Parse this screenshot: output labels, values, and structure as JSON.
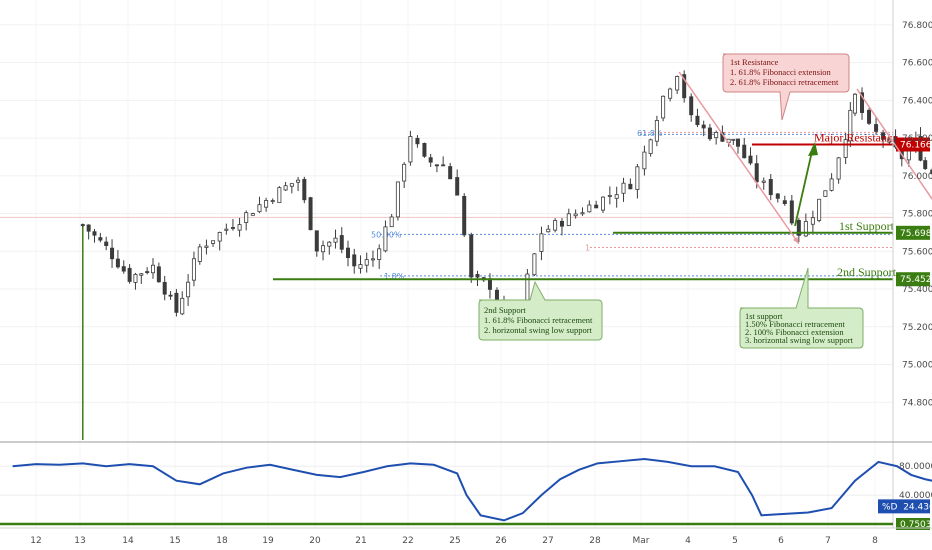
{
  "chart_data": [
    {
      "type": "candlestick",
      "title": "",
      "y_axis": {
        "ticks": [
          "76.800",
          "76.600",
          "76.400",
          "76.200",
          "76.000",
          "75.800",
          "75.600",
          "75.400",
          "75.200",
          "75.000",
          "74.800"
        ],
        "range": [
          74.6,
          76.9
        ]
      },
      "x_axis": {
        "ticks": [
          "12",
          "13",
          "14",
          "15",
          "18",
          "19",
          "20",
          "21",
          "22",
          "25",
          "26",
          "27",
          "28",
          "Mar",
          "4",
          "5",
          "6",
          "7",
          "8"
        ]
      },
      "series": [
        {
          "close_path": [
            [
              13.0,
              75.74
            ],
            [
              13.5,
              75.62
            ],
            [
              14.0,
              75.46
            ],
            [
              14.5,
              75.52
            ],
            [
              15.0,
              75.28
            ],
            [
              15.5,
              75.62
            ],
            [
              17.2,
              75.92
            ],
            [
              17.6,
              75.98
            ],
            [
              18.0,
              75.62
            ],
            [
              18.4,
              75.66
            ],
            [
              18.8,
              75.52
            ],
            [
              19.2,
              75.56
            ],
            [
              19.6,
              75.8
            ],
            [
              20.0,
              76.22
            ],
            [
              20.3,
              76.08
            ],
            [
              20.7,
              76.06
            ],
            [
              21.0,
              75.92
            ],
            [
              21.3,
              75.45
            ],
            [
              21.7,
              75.42
            ],
            [
              22.0,
              75.25
            ],
            [
              22.2,
              75.12
            ],
            [
              22.5,
              75.46
            ],
            [
              22.8,
              75.7
            ],
            [
              24.7,
              75.96
            ],
            [
              25.0,
              76.12
            ],
            [
              25.4,
              76.42
            ],
            [
              25.7,
              76.55
            ],
            [
              26.0,
              76.3
            ],
            [
              26.4,
              76.22
            ],
            [
              26.8,
              76.2
            ],
            [
              27.0,
              76.16
            ],
            [
              27.4,
              75.98
            ],
            [
              27.7,
              75.92
            ],
            [
              28.0,
              75.86
            ],
            [
              28.3,
              75.7
            ],
            [
              28.6,
              75.8
            ],
            [
              29.0,
              76.0
            ],
            [
              29.3,
              76.22
            ],
            [
              29.5,
              76.42
            ],
            [
              29.8,
              76.25
            ],
            [
              30.1,
              76.2
            ],
            [
              30.5,
              76.1
            ],
            [
              30.8,
              76.18
            ],
            [
              31.0,
              76.04
            ],
            [
              31.3,
              76.0
            ],
            [
              31.6,
              76.1
            ],
            [
              31.9,
              75.98
            ],
            [
              32.1,
              75.8
            ]
          ],
          "horizontal_levels": [
            {
              "name": "Major Resistance",
              "price_label": "76.166",
              "value": 76.166
            },
            {
              "name": "1st Support",
              "price_label": "75.698",
              "value": 75.698
            },
            {
              "name": "2nd Support",
              "price_label": "75.452",
              "value": 75.452
            }
          ],
          "fib_labels": [
            "61.8%",
            "50.00%",
            "1",
            "1.8%"
          ]
        }
      ]
    },
    {
      "type": "line",
      "y_axis": {
        "ticks": [
          "80.0000",
          "40.0000"
        ],
        "range": [
          0,
          100
        ]
      },
      "indicator_label": "%D",
      "indicator_value": "24.4362",
      "bottom_value": "0.7503",
      "series": [
        {
          "values": [
            [
              11.5,
              80
            ],
            [
              12.0,
              83
            ],
            [
              12.5,
              82
            ],
            [
              13.0,
              84
            ],
            [
              13.5,
              80
            ],
            [
              14.0,
              83
            ],
            [
              14.5,
              80
            ],
            [
              15.0,
              60
            ],
            [
              15.5,
              55
            ],
            [
              16.0,
              70
            ],
            [
              16.5,
              78
            ],
            [
              17.0,
              82
            ],
            [
              17.5,
              75
            ],
            [
              18.0,
              68
            ],
            [
              18.5,
              65
            ],
            [
              19.0,
              72
            ],
            [
              19.5,
              80
            ],
            [
              20.0,
              84
            ],
            [
              20.5,
              82
            ],
            [
              21.0,
              70
            ],
            [
              21.2,
              40
            ],
            [
              21.5,
              12
            ],
            [
              22.0,
              5
            ],
            [
              22.4,
              15
            ],
            [
              22.8,
              40
            ],
            [
              23.2,
              62
            ],
            [
              23.6,
              75
            ],
            [
              24.0,
              84
            ],
            [
              24.5,
              87
            ],
            [
              25.0,
              90
            ],
            [
              25.5,
              86
            ],
            [
              26.0,
              80
            ],
            [
              26.5,
              80
            ],
            [
              27.0,
              72
            ],
            [
              27.3,
              40
            ],
            [
              27.5,
              12
            ],
            [
              28.0,
              14
            ],
            [
              28.5,
              16
            ],
            [
              29.0,
              22
            ],
            [
              29.5,
              60
            ],
            [
              30.0,
              86
            ],
            [
              30.4,
              80
            ],
            [
              30.7,
              68
            ],
            [
              31.0,
              62
            ],
            [
              31.5,
              55
            ],
            [
              32.0,
              22
            ],
            [
              32.5,
              14
            ],
            [
              32.8,
              35
            ],
            [
              33.2,
              38
            ],
            [
              33.5,
              24
            ]
          ]
        }
      ]
    }
  ],
  "annotations": {
    "resistance_box": [
      "1st Resistance",
      "1. 61.8% Fibonacci extension",
      "2. 61.8% Fibonacci retracement"
    ],
    "support2_box": [
      "2nd Support",
      "1. 61.8% Fibonacci retracement",
      "2. horizontal swing low support"
    ],
    "support1_box": [
      "1st support",
      "1.50% Fibonacci retracement",
      "2. 100% Fibonacci extension",
      "3. horizontal swing low support"
    ]
  },
  "colors": {
    "candle": "#3b3b3b",
    "resistance": "#c00000",
    "support": "#3a7d10",
    "oscillator": "#1e4fb0",
    "fib_pink": "#e89aa0",
    "fib_blue": "#5b8fd8",
    "resistance_box_bg": "#f9d4d4",
    "support_box_bg": "#d4ecc8"
  }
}
